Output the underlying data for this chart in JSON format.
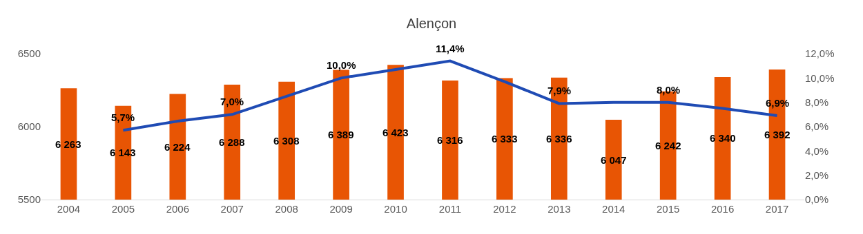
{
  "chart_data": {
    "type": "bar",
    "title": "Alençon",
    "categories": [
      "2004",
      "2005",
      "2006",
      "2007",
      "2008",
      "2009",
      "2010",
      "2011",
      "2012",
      "2013",
      "2014",
      "2015",
      "2016",
      "2017"
    ],
    "series": [
      {
        "color": "#e85504",
        "values": [
          6263,
          6143,
          6224,
          6288,
          6308,
          6389,
          6423,
          6316,
          6333,
          6336,
          6047,
          6242,
          6340,
          6392
        ],
        "value_labels": [
          "6 263",
          "6 143",
          "6 224",
          "6 288",
          "6 308",
          "6 389",
          "6 423",
          "6 316",
          "6 333",
          "6 336",
          "6 047",
          "6 242",
          "6 340",
          "6 392"
        ]
      },
      {
        "type": "line",
        "axis": "y2",
        "color": "#1f4bb4",
        "values": [
          null,
          5.7,
          6.45,
          7.0,
          8.5,
          10.0,
          10.7,
          11.4,
          9.7,
          7.9,
          8.0,
          8.0,
          7.5,
          6.9
        ],
        "value_labels": [
          null,
          "5,7%",
          null,
          "7,0%",
          null,
          "10,0%",
          null,
          "11,4%",
          null,
          "7,9%",
          null,
          "8,0%",
          null,
          "6,9%"
        ]
      }
    ],
    "ylim": [
      5500,
      6500
    ],
    "yticks": [
      5500,
      6000,
      6500
    ],
    "y2lim": [
      0,
      12
    ],
    "y2ticks": [
      {
        "value": 0,
        "label": "0,0%"
      },
      {
        "value": 2,
        "label": "2,0%"
      },
      {
        "value": 4,
        "label": "4,0%"
      },
      {
        "value": 6,
        "label": "6,0%"
      },
      {
        "value": 8,
        "label": "8,0%"
      },
      {
        "value": 10,
        "label": "10,0%"
      },
      {
        "value": 12,
        "label": "12,0%"
      }
    ],
    "grid": false,
    "legend": false,
    "marker": "none",
    "line_style": "solid"
  }
}
